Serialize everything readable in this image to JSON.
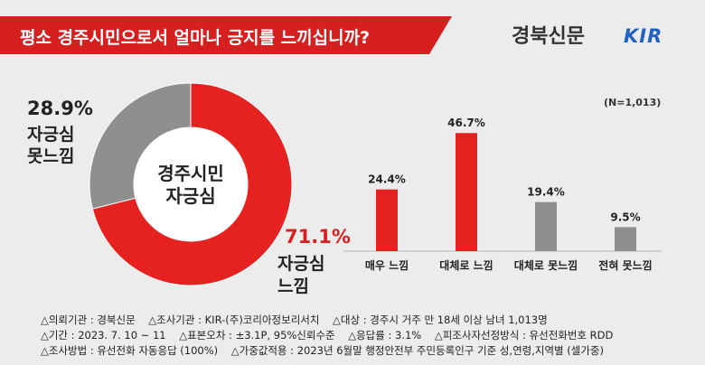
{
  "title": "평소 경주시민으로서 얼마나 긍지를 느끼십니까?",
  "publisher": "경북신문",
  "partner_logo": "KIR",
  "sample_note": "(N=1,013)",
  "colors": {
    "red": "#e5221f",
    "dark_red": "#b31a18",
    "grey": "#8f8f8f"
  },
  "donut": {
    "center_label": "경주시민\n자긍심",
    "slices": [
      {
        "label": "자긍심\n느낌",
        "pct_label": "71.1%",
        "value": 71.1
      },
      {
        "label": "자긍심\n못느낌",
        "pct_label": "28.9%",
        "value": 28.9
      }
    ]
  },
  "chart_data": [
    {
      "type": "pie",
      "title": "경주시민\n자긍심",
      "categories": [
        "자긍심 느낌",
        "자긍심 못느낌"
      ],
      "values": [
        71.1,
        28.9
      ]
    },
    {
      "type": "bar",
      "categories": [
        "매우 느낌",
        "대체로 느낌",
        "대체로 못느낌",
        "전혀 못느낌"
      ],
      "values": [
        24.4,
        46.7,
        19.4,
        9.5
      ],
      "value_labels": [
        "24.4%",
        "46.7%",
        "19.4%",
        "9.5%"
      ],
      "bar_colors": [
        "#e5221f",
        "#e5221f",
        "#8f8f8f",
        "#8f8f8f"
      ],
      "ylim": [
        0,
        50
      ],
      "grid": false
    }
  ],
  "notes": [
    "△의뢰기관 : 경북신문    △조사기관 : KIR-(주)코리아정보리서치    △대상 : 경주시 거주 만 18세 이상 남녀 1,013명",
    "△기간 : 2023. 7. 10 ~ 11    △표본오차 : ±3.1P, 95%신뢰수준    △응답률 : 3.1%    △피조사자선정방식 : 유선전화번호 RDD",
    "△조사방법 : 유선전화 자동응답 (100%)    △가중값적용 : 2023년 6월말 행정안전부 주민등록인구 기준 성,연령,지역별 (셀가중)"
  ]
}
